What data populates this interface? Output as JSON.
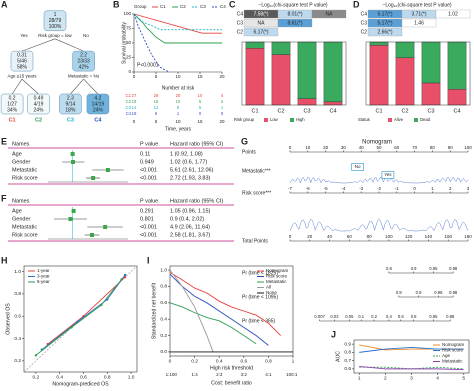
{
  "chart_data": [
    {
      "label": "A",
      "type": "tree",
      "nodes": [
        {
          "lines": [
            "1",
            "28/79",
            "100%"
          ],
          "color": "#cfe5f2",
          "split": "Risk group = low",
          "yes": "Yes",
          "no": "No"
        },
        {
          "lines": [
            "0.31",
            "5/46",
            "58%"
          ],
          "color": "#e8f2f8",
          "split": "Age ≥15 years"
        },
        {
          "lines": [
            "2.2",
            "23/33",
            "42%"
          ],
          "color": "#a9d3ea",
          "split": "Metastatic = No"
        },
        {
          "lines": [
            "0.2",
            "1/27",
            "34%"
          ],
          "color": "#f3f8fb",
          "cluster": "C1",
          "cluster_color": "#e8413b"
        },
        {
          "lines": [
            "0.49",
            "4/19",
            "24%"
          ],
          "color": "#f3f8fb",
          "cluster": "C2",
          "cluster_color": "#2e9e4f"
        },
        {
          "lines": [
            "2.3",
            "9/14",
            "18%"
          ],
          "color": "#bddcee",
          "cluster": "C3",
          "cluster_color": "#1bb3c4"
        },
        {
          "lines": [
            "4.2",
            "14/19",
            "24%"
          ],
          "color": "#6fb3dc",
          "cluster": "C4",
          "cluster_color": "#2a4fbf"
        }
      ]
    },
    {
      "label": "B",
      "type": "km",
      "legend_title": "Group",
      "annotation": "P<0.0001",
      "ylabel": "Survival probability",
      "xlabel": "Time, years",
      "risk_title": "Number at risk",
      "xlim": [
        0,
        20
      ],
      "xticks": [
        0,
        5,
        10,
        15,
        20
      ],
      "ylim": [
        0,
        100
      ],
      "yticks": [
        0,
        25,
        50,
        75,
        100
      ],
      "series": [
        {
          "name": "C1",
          "color": "#e8413b",
          "dash": false,
          "x": [
            0,
            15.5,
            20
          ],
          "values": [
            100,
            67,
            67
          ],
          "at_risk": [
            27,
            26,
            20,
            10,
            4
          ]
        },
        {
          "name": "C2",
          "color": "#2e9e4f",
          "dash": false,
          "x": [
            0,
            1,
            2,
            3,
            4,
            5,
            7,
            20
          ],
          "values": [
            100,
            92,
            85,
            75,
            68,
            60,
            50,
            50
          ],
          "at_risk": [
            19,
            15,
            10,
            6,
            2
          ]
        },
        {
          "name": "C3",
          "color": "#1bb3c4",
          "dash": true,
          "x": [
            0,
            1,
            2,
            4,
            6,
            20
          ],
          "values": [
            100,
            93,
            86,
            80,
            73,
            73
          ],
          "at_risk": [
            14,
            12,
            9,
            5,
            1
          ]
        },
        {
          "name": "C4",
          "color": "#2a4fbf",
          "dash": true,
          "x": [
            0,
            0.5,
            1,
            2,
            3,
            4,
            5,
            6,
            8
          ],
          "values": [
            100,
            90,
            78,
            62,
            45,
            30,
            18,
            8,
            0
          ],
          "at_risk": [
            19,
            6,
            1,
            0,
            0
          ]
        }
      ]
    },
    {
      "label": "C",
      "type": "bar",
      "stacked": true,
      "title": "−Log₁₀(chi-square test P value)",
      "table": [
        {
          "name": "C4",
          "cells": [
            "7.58(*)",
            "8.01(*)",
            "NA"
          ],
          "colors": [
            "#5a5a5a",
            "#bcd9ee",
            "#8a8a8a"
          ]
        },
        {
          "name": "C3",
          "cells": [
            "NA",
            "8.61(*)"
          ],
          "colors": [
            "#e6e6e6",
            "#5aa0d6"
          ]
        },
        {
          "name": "C2",
          "cells": [
            "6.17(*)"
          ],
          "colors": [
            "#bcd9ee"
          ]
        }
      ],
      "categories": [
        "C1",
        "C2",
        "C3",
        "C4"
      ],
      "ylim": [
        0,
        100
      ],
      "legend_title": "Risk group",
      "series": [
        {
          "name": "Low",
          "color": "#e8506a",
          "values": [
            90,
            80,
            10,
            5
          ]
        },
        {
          "name": "High",
          "color": "#3aaa5e",
          "values": [
            10,
            20,
            90,
            95
          ]
        }
      ]
    },
    {
      "label": "D",
      "type": "bar",
      "stacked": true,
      "title": "−Log₁₀(chi-square test P value)",
      "table": [
        {
          "name": "C4",
          "cells": [
            "5.17(*)",
            "3.71(*)",
            "1.02"
          ],
          "colors": [
            "#5aa0d6",
            "#bcd9ee",
            "#ffffff"
          ]
        },
        {
          "name": "C3",
          "cells": [
            "5.17(*)",
            "1.46"
          ],
          "colors": [
            "#5aa0d6",
            "#ffffff"
          ]
        },
        {
          "name": "C2",
          "cells": [
            "2.66(*)"
          ],
          "colors": [
            "#bcd9ee"
          ]
        }
      ],
      "categories": [
        "C1",
        "C2",
        "C3",
        "C4"
      ],
      "ylim": [
        0,
        100
      ],
      "legend_title": "Status",
      "series": [
        {
          "name": "Alive",
          "color": "#e8506a",
          "values": [
            95,
            75,
            35,
            25
          ]
        },
        {
          "name": "Dead",
          "color": "#3aaa5e",
          "values": [
            5,
            25,
            65,
            75
          ]
        }
      ]
    },
    {
      "label": "E",
      "type": "forest",
      "headers": [
        "Names",
        "P value",
        "Hazard ratio (95% CI)"
      ],
      "xlim": [
        0.3,
        15
      ],
      "log": true,
      "ref_line": 1,
      "rows": [
        {
          "name": "Age",
          "p": "0.11",
          "hr": 1,
          "lo": 0.92,
          "hi": 1.08,
          "text": "1 (0.92, 1.08)"
        },
        {
          "name": "Gender",
          "p": "0.949",
          "hr": 1.02,
          "lo": 0.6,
          "hi": 1.77,
          "text": "1.02 (0.6, 1.77)"
        },
        {
          "name": "Metastatic",
          "p": "<0.001",
          "hr": 5.61,
          "lo": 2.61,
          "hi": 12.06,
          "text": "5.61 (2.61, 12.06)"
        },
        {
          "name": "Risk score",
          "p": "<0.001",
          "hr": 2.72,
          "lo": 1.93,
          "hi": 3.83,
          "text": "2.72 (1.93, 3.83)"
        }
      ]
    },
    {
      "label": "F",
      "type": "forest",
      "headers": [
        "Names",
        "P value",
        "Hazard ratio (95% CI)"
      ],
      "xlim": [
        0.3,
        15
      ],
      "log": true,
      "ref_line": 1,
      "rows": [
        {
          "name": "Age",
          "p": "0.291",
          "hr": 1.05,
          "lo": 0.96,
          "hi": 1.15,
          "text": "1.05 (0.96, 1.15)"
        },
        {
          "name": "Gender",
          "p": "0.801",
          "hr": 0.9,
          "lo": 0.4,
          "hi": 2.02,
          "text": "0.9 (0.4, 2.02)"
        },
        {
          "name": "Metastatic",
          "p": "<0.001",
          "hr": 4.9,
          "lo": 2.06,
          "hi": 11.64,
          "text": "4.9 (2.06, 11.64)"
        },
        {
          "name": "Risk score",
          "p": "<0.001",
          "hr": 2.58,
          "lo": 1.81,
          "hi": 3.67,
          "text": "2.58 (1.81, 3.67)"
        }
      ]
    },
    {
      "label": "G",
      "type": "nomogram",
      "title": "Nomogram",
      "rows": [
        {
          "name": "Points",
          "lim": [
            0,
            100
          ],
          "ticks": [
            0,
            10,
            20,
            30,
            40,
            50,
            60,
            70,
            80,
            90,
            100
          ]
        },
        {
          "name": "Metastatic***",
          "levels": [
            "No",
            "Yes"
          ],
          "points": [
            38,
            55
          ]
        },
        {
          "name": "Risk score***",
          "lim": [
            -7,
            3
          ],
          "ticks": [
            -7,
            -6,
            -5,
            -4,
            -3,
            -2,
            -1,
            0,
            1,
            2,
            3
          ]
        },
        {
          "name": "Total Points",
          "lim": [
            0,
            180
          ],
          "ticks": [
            0,
            20,
            40,
            60,
            80,
            100,
            120,
            140,
            160,
            180
          ]
        },
        {
          "name": "Pr (time < 1825)",
          "probs": [
            0.8,
            0.9,
            0.95,
            0.98
          ],
          "total_points": [
            100,
            125,
            145,
            165
          ]
        },
        {
          "name": "Pr (time < 1095)",
          "probs": [
            0.8,
            0.9,
            0.96,
            0.98
          ],
          "total_points": [
            110,
            130,
            150,
            165
          ]
        },
        {
          "name": "Pr (time < 365)",
          "probs": [
            0.007,
            0.02,
            0.05,
            0.1,
            0.2,
            0.4,
            0.6,
            0.8,
            0.95,
            0.98
          ],
          "total_points": [
            30,
            45,
            60,
            72,
            85,
            100,
            112,
            125,
            145,
            162
          ]
        }
      ]
    },
    {
      "label": "H",
      "type": "line",
      "xlabel": "Nomogram-prediced OS",
      "ylabel": "Observed OS",
      "xlim": [
        0.1,
        1.05
      ],
      "ylim": [
        0.1,
        1.05
      ],
      "xticks": [
        0.2,
        0.4,
        0.6,
        0.8,
        {
          "value": 1,
          "label": "1.0"
        }
      ],
      "yticks": [
        0.2,
        0.4,
        0.6,
        0.8,
        {
          "value": 1,
          "label": "1.0"
        }
      ],
      "diagonal": true,
      "markers": true,
      "legend": "upper left",
      "series": [
        {
          "name": "1-year",
          "color": "#e8413b",
          "dash": false,
          "x": [
            0.3,
            0.6,
            0.95
          ],
          "values": [
            0.35,
            0.6,
            0.95
          ]
        },
        {
          "name": "3-year",
          "color": "#2a6fd0",
          "dash": false,
          "x": [
            0.25,
            0.55,
            0.8,
            0.95
          ],
          "values": [
            0.3,
            0.55,
            0.75,
            0.97
          ]
        },
        {
          "name": "5-year",
          "color": "#2e9e4f",
          "dash": false,
          "x": [
            0.2,
            0.5,
            0.75,
            0.92
          ],
          "values": [
            0.25,
            0.5,
            0.7,
            0.93
          ]
        }
      ]
    },
    {
      "label": "I",
      "type": "line",
      "xlabel": "High risk threshold",
      "ylabel": "Standardized net benefit",
      "x2label": "Cost: benefit ratio",
      "xlim": [
        0,
        1
      ],
      "ylim": [
        -0.05,
        1.05
      ],
      "xticks": [
        0,
        0.2,
        0.4,
        0.6,
        0.8,
        1
      ],
      "yticks": [
        {
          "value": 0,
          "label": "0.0"
        },
        0.2,
        0.4,
        0.6,
        0.8,
        {
          "value": 1,
          "label": "1.0"
        }
      ],
      "x2ticks": [
        {
          "value": 0.01,
          "label": "1:100"
        },
        {
          "value": 0.2,
          "label": "1:4"
        },
        {
          "value": 0.4,
          "label": "2:3"
        },
        {
          "value": 0.6,
          "label": "3:2"
        },
        {
          "value": 0.8,
          "label": "4:1"
        },
        {
          "value": 0.99,
          "label": "100:1"
        }
      ],
      "legend": "upper right",
      "series": [
        {
          "name": "Nomogram",
          "color": "#e8413b",
          "dash": false,
          "x": [
            0,
            0.1,
            0.2,
            0.3,
            0.4,
            0.5,
            0.6,
            0.7,
            0.8,
            0.9
          ],
          "values": [
            0.97,
            0.88,
            0.78,
            0.72,
            0.62,
            0.55,
            0.5,
            0.45,
            0.35,
            0.2
          ]
        },
        {
          "name": "Risk score",
          "color": "#2a4fbf",
          "dash": false,
          "x": [
            0,
            0.1,
            0.2,
            0.3,
            0.4,
            0.5,
            0.6,
            0.7,
            0.8
          ],
          "values": [
            0.95,
            0.8,
            0.68,
            0.6,
            0.5,
            0.4,
            0.3,
            0.2,
            0.08
          ]
        },
        {
          "name": "Metastatic",
          "color": "#2e9e4f",
          "dash": false,
          "x": [
            0,
            0.1,
            0.2,
            0.3,
            0.4,
            0.5,
            0.6,
            0.7
          ],
          "values": [
            0.6,
            0.55,
            0.48,
            0.42,
            0.38,
            0.3,
            0.2,
            0.1
          ]
        },
        {
          "name": "All",
          "color": "#999999",
          "dash": false,
          "x": [
            0,
            0.1,
            0.2,
            0.3,
            0.35
          ],
          "values": [
            1,
            0.8,
            0.55,
            0.2,
            0
          ]
        },
        {
          "name": "None",
          "color": "#111111",
          "dash": false,
          "x": [
            0,
            1
          ],
          "values": [
            0,
            0
          ]
        }
      ]
    },
    {
      "label": "J",
      "type": "line",
      "xlabel": "",
      "ylabel": "AUC",
      "xlim": [
        0.8,
        5.2
      ],
      "ylim": [
        0.55,
        0.95
      ],
      "xticks": [
        1,
        2,
        3,
        4,
        5
      ],
      "yticks": [
        0.6,
        0.7,
        0.8,
        0.9
      ],
      "legend": "upper right",
      "series": [
        {
          "name": "Nomogram",
          "color": "#f08a24",
          "dash": false,
          "x": [
            1,
            2,
            3,
            4,
            5
          ],
          "values": [
            0.89,
            0.83,
            0.84,
            0.84,
            0.84
          ]
        },
        {
          "name": "Risk score",
          "color": "#2a6fd0",
          "dash": false,
          "x": [
            1,
            2,
            3,
            4,
            5
          ],
          "values": [
            0.8,
            0.84,
            0.86,
            0.84,
            0.84
          ]
        },
        {
          "name": "Age",
          "color": "#2e9e4f",
          "dash": true,
          "x": [
            1,
            2,
            3,
            4,
            5
          ],
          "values": [
            0.62,
            0.62,
            0.6,
            0.62,
            0.6
          ]
        },
        {
          "name": "Metastatic",
          "color": "#8e44ad",
          "dash": false,
          "x": [
            1,
            2,
            3,
            4,
            5
          ],
          "values": [
            0.63,
            0.6,
            0.6,
            0.6,
            0.59
          ]
        }
      ]
    }
  ]
}
